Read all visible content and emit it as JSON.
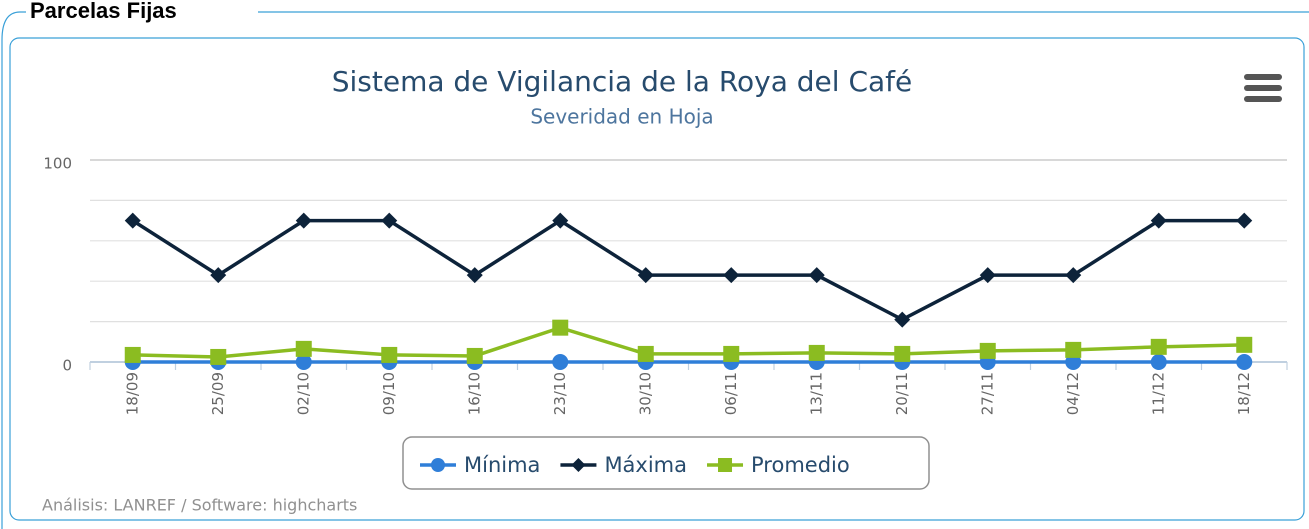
{
  "fieldset_title": "Parcelas Fijas",
  "chart_data": {
    "type": "line",
    "title": "Sistema de Vigilancia de la Roya del Café",
    "subtitle": "Severidad en Hoja",
    "credits": "Análisis: LANREF / Software: highcharts",
    "categories": [
      "18/09",
      "25/09",
      "02/10",
      "09/10",
      "16/10",
      "23/10",
      "30/10",
      "06/11",
      "13/11",
      "20/11",
      "27/11",
      "04/12",
      "11/12",
      "18/12"
    ],
    "series": [
      {
        "name": "Mínima",
        "color": "#2f7ed8",
        "marker": "circle",
        "values": [
          0,
          0,
          0,
          0,
          0,
          0,
          0,
          0,
          0,
          0,
          0,
          0,
          0,
          0
        ]
      },
      {
        "name": "Máxima",
        "color": "#0d233a",
        "marker": "diamond",
        "values": [
          70,
          43,
          70,
          70,
          43,
          70,
          43,
          43,
          43,
          21,
          43,
          43,
          70,
          70
        ]
      },
      {
        "name": "Promedio",
        "color": "#8bbc21",
        "marker": "square",
        "values": [
          3.5,
          2.5,
          6.5,
          3.5,
          3,
          17,
          4,
          4,
          4.5,
          4,
          5.5,
          6,
          7.5,
          8.5
        ]
      }
    ],
    "ylim": [
      0,
      100
    ],
    "yticks": [
      0,
      100
    ],
    "minor_yticks": [
      20,
      40,
      60,
      80
    ],
    "grid": true
  }
}
